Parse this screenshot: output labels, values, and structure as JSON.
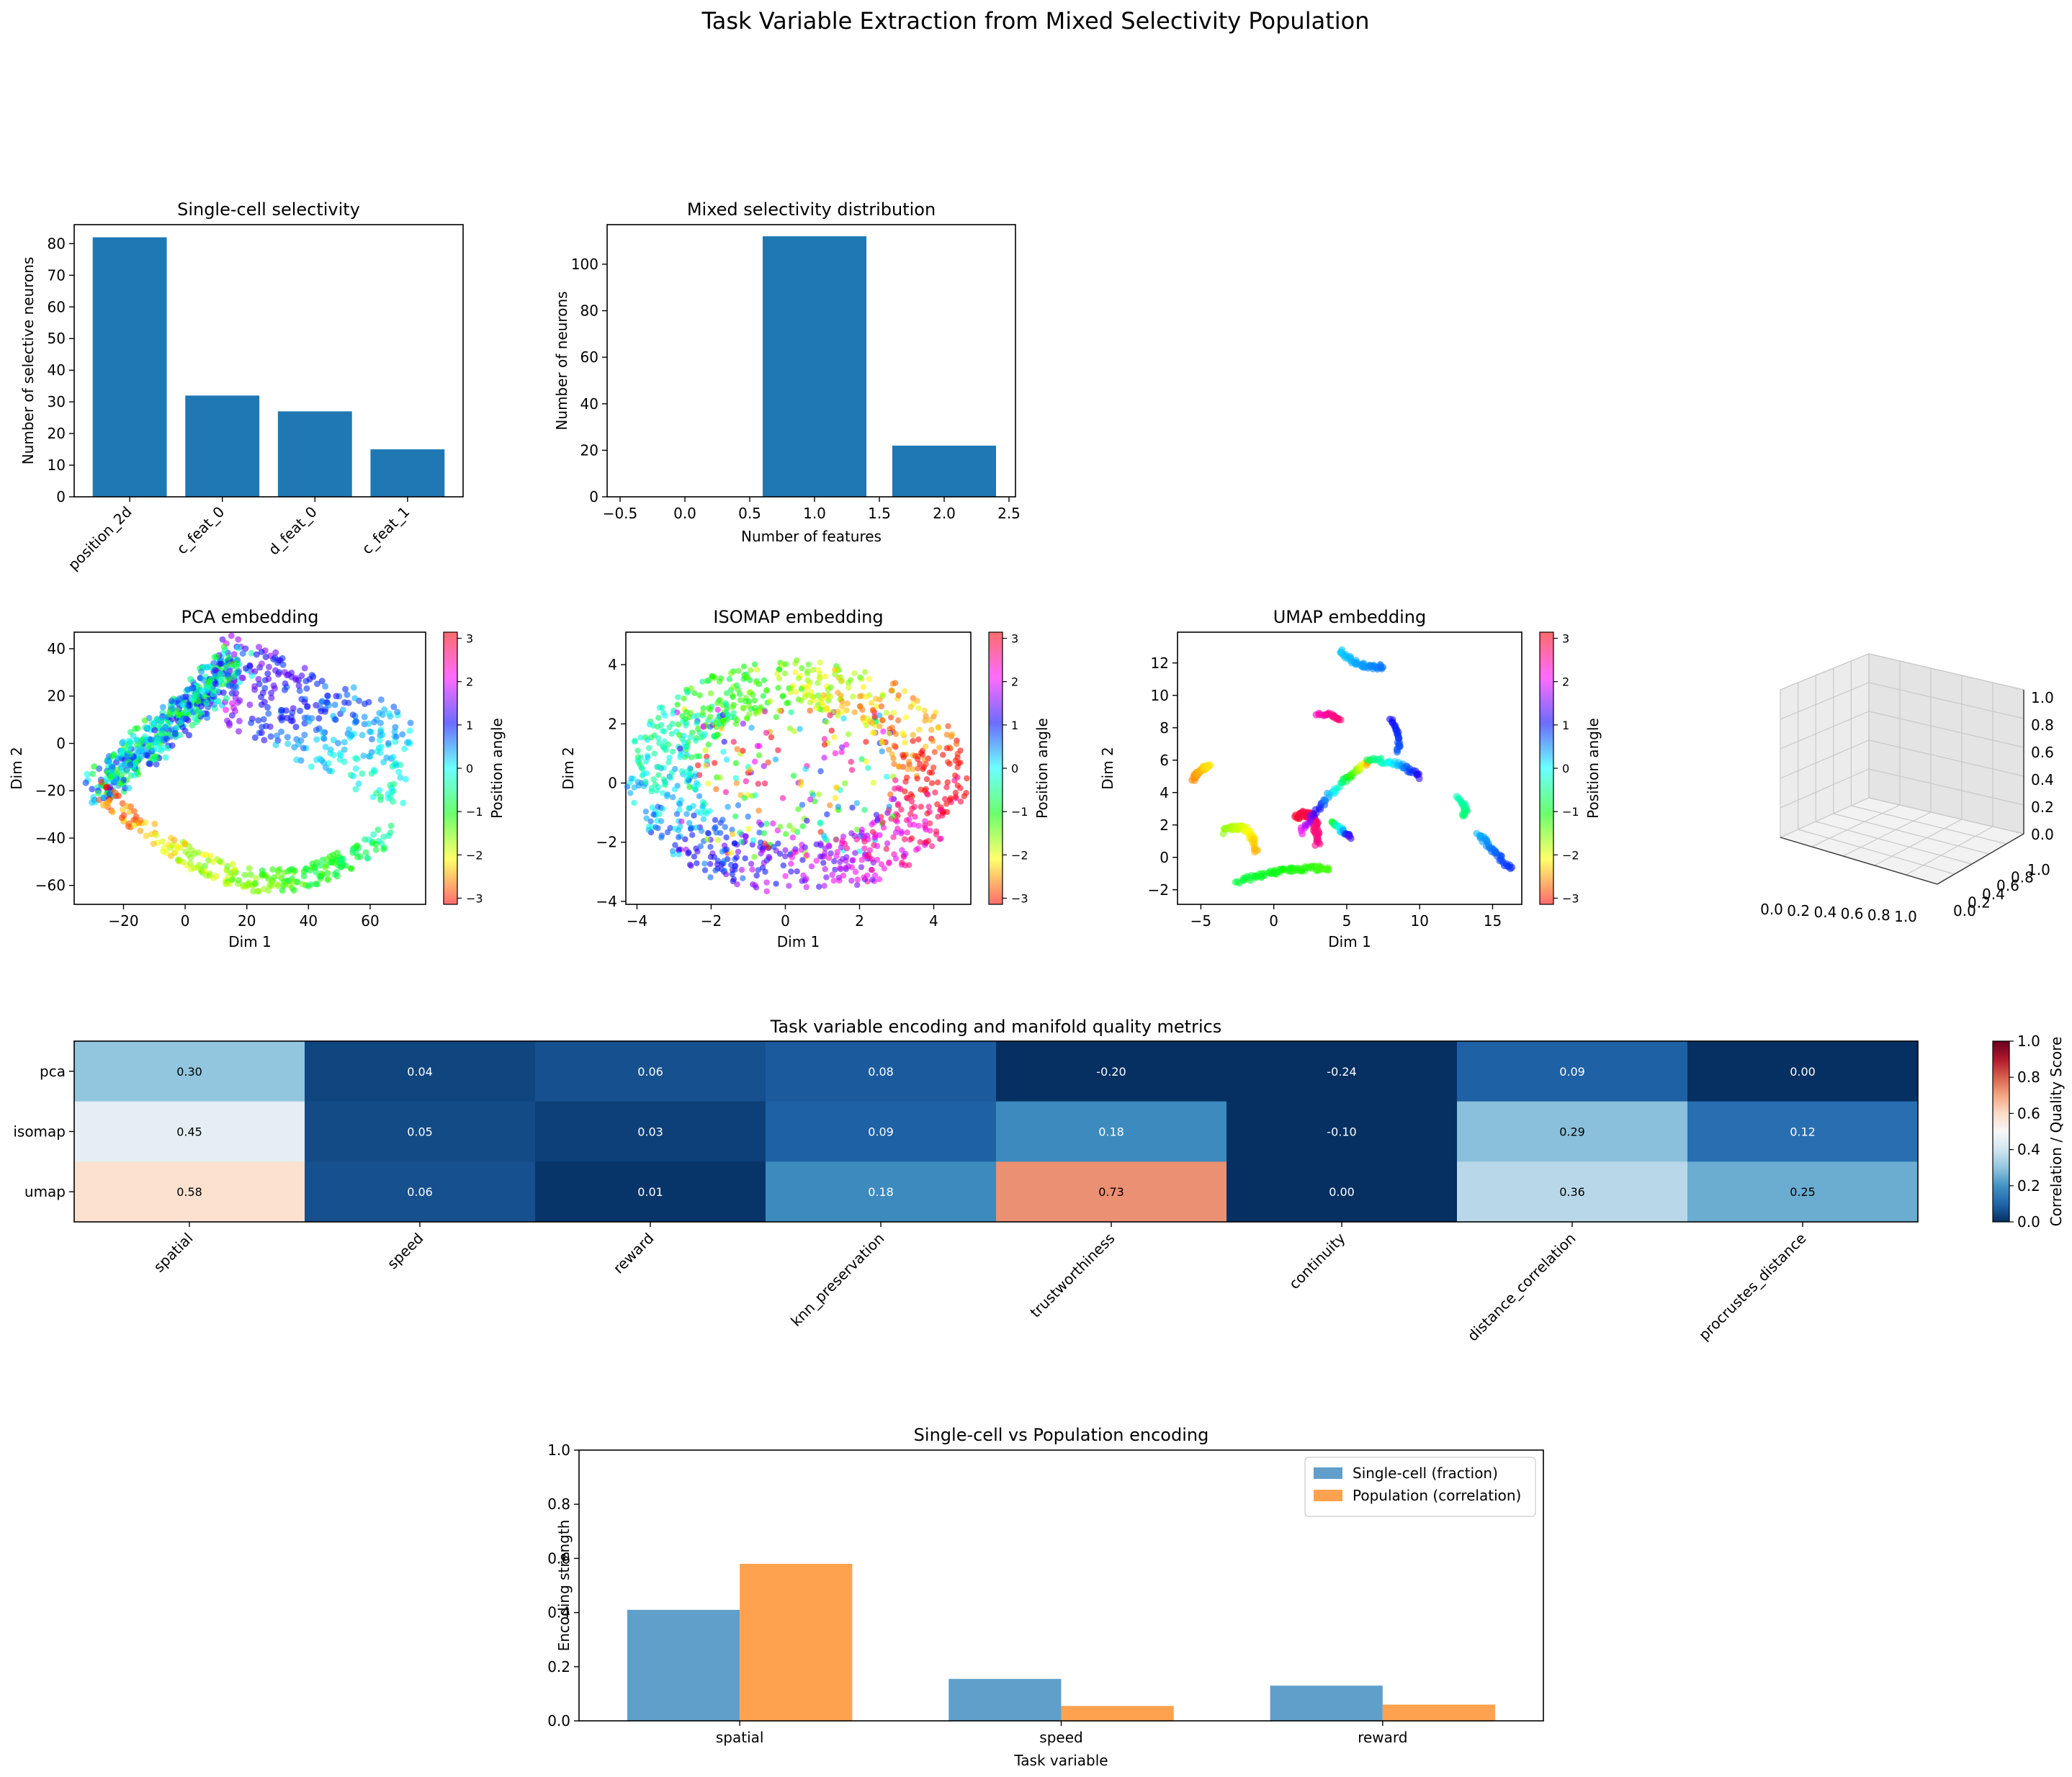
{
  "figure": {
    "title": "Task Variable Extraction from Mixed Selectivity Population"
  },
  "colors": {
    "bar": "#1f77b4",
    "single_cell": "#609fca",
    "population": "#fea24f"
  },
  "chart_data": [
    {
      "type": "bar",
      "title": "Single-cell selectivity",
      "xlabel": "",
      "ylabel": "Number of selective neurons",
      "categories": [
        "position_2d",
        "c_feat_0",
        "d_feat_0",
        "c_feat_1"
      ],
      "values": [
        82,
        32,
        27,
        15
      ],
      "ylim": [
        0,
        86
      ],
      "yticks": [
        0,
        10,
        20,
        30,
        40,
        50,
        60,
        70,
        80
      ]
    },
    {
      "type": "bar",
      "title": "Mixed selectivity distribution",
      "xlabel": "Number of features",
      "ylabel": "Number of neurons",
      "x": [
        1,
        2
      ],
      "values": [
        112,
        22
      ],
      "xlim": [
        -0.6,
        2.55
      ],
      "ylim": [
        0,
        117
      ],
      "xticks": [
        -0.5,
        0.0,
        0.5,
        1.0,
        1.5,
        2.0,
        2.5
      ],
      "yticks": [
        0,
        20,
        40,
        60,
        80,
        100
      ]
    },
    {
      "type": "scatter",
      "title": "PCA embedding",
      "xlabel": "Dim 1",
      "ylabel": "Dim 2",
      "colorbar_label": "Position angle",
      "colorbar_ticks": [
        -3,
        -2,
        -1,
        0,
        1,
        2,
        3
      ],
      "xlim": [
        -36,
        78
      ],
      "ylim": [
        -68,
        47
      ],
      "xticks": [
        -20,
        0,
        20,
        40,
        60
      ],
      "yticks": [
        -60,
        -40,
        -20,
        0,
        20,
        40
      ]
    },
    {
      "type": "scatter",
      "title": "ISOMAP embedding",
      "xlabel": "Dim 1",
      "ylabel": "Dim 2",
      "colorbar_label": "Position angle",
      "colorbar_ticks": [
        -3,
        -2,
        -1,
        0,
        1,
        2,
        3
      ],
      "xlim": [
        -4.3,
        5.0
      ],
      "ylim": [
        -4.1,
        5.1
      ],
      "xticks": [
        -4,
        -2,
        0,
        2,
        4
      ],
      "yticks": [
        -4,
        -2,
        0,
        2,
        4
      ]
    },
    {
      "type": "scatter",
      "title": "UMAP embedding",
      "xlabel": "Dim 1",
      "ylabel": "Dim 2",
      "colorbar_label": "Position angle",
      "colorbar_ticks": [
        -3,
        -2,
        -1,
        0,
        1,
        2,
        3
      ],
      "xlim": [
        -6.6,
        17.0
      ],
      "ylim": [
        -2.9,
        13.9
      ],
      "xticks": [
        -5,
        0,
        5,
        10,
        15
      ],
      "yticks": [
        -2,
        0,
        2,
        4,
        6,
        8,
        10,
        12
      ]
    },
    {
      "type": "3d-axes",
      "ticks": [
        "0.0",
        "0.2",
        "0.4",
        "0.6",
        "0.8",
        "1.0"
      ]
    },
    {
      "type": "heatmap",
      "title": "Task variable encoding and manifold quality metrics",
      "rows": [
        "pca",
        "isomap",
        "umap"
      ],
      "columns": [
        "spatial",
        "speed",
        "reward",
        "knn_preservation",
        "trustworthiness",
        "continuity",
        "distance_correlation",
        "procrustes_distance"
      ],
      "values": [
        [
          0.3,
          0.04,
          0.06,
          0.08,
          -0.2,
          -0.24,
          0.09,
          0.0
        ],
        [
          0.45,
          0.05,
          0.03,
          0.09,
          0.18,
          -0.1,
          0.29,
          0.12
        ],
        [
          0.58,
          0.06,
          0.01,
          0.18,
          0.73,
          0.0,
          0.36,
          0.25
        ]
      ],
      "labels": [
        [
          "0.30",
          "0.04",
          "0.06",
          "0.08",
          "-0.20",
          "-0.24",
          "0.09",
          "0.00"
        ],
        [
          "0.45",
          "0.05",
          "0.03",
          "0.09",
          "0.18",
          "-0.10",
          "0.29",
          "0.12"
        ],
        [
          "0.58",
          "0.06",
          "0.01",
          "0.18",
          "0.73",
          "0.00",
          "0.36",
          "0.25"
        ]
      ],
      "colorbar_label": "Correlation / Quality Score",
      "colorbar_range": [
        0,
        1
      ],
      "colorbar_ticks": [
        "0.0",
        "0.2",
        "0.4",
        "0.6",
        "0.8",
        "1.0"
      ]
    },
    {
      "type": "bar",
      "title": "Single-cell vs Population encoding",
      "xlabel": "Task variable",
      "ylabel": "Encoding strength",
      "categories": [
        "spatial",
        "speed",
        "reward"
      ],
      "series": [
        {
          "name": "Single-cell (fraction)",
          "values": [
            0.41,
            0.155,
            0.13
          ]
        },
        {
          "name": "Population (correlation)",
          "values": [
            0.58,
            0.055,
            0.06
          ]
        }
      ],
      "ylim": [
        0,
        1.0
      ],
      "yticks": [
        "0.0",
        "0.2",
        "0.4",
        "0.6",
        "0.8",
        "1.0"
      ],
      "legend": "top-right"
    }
  ]
}
